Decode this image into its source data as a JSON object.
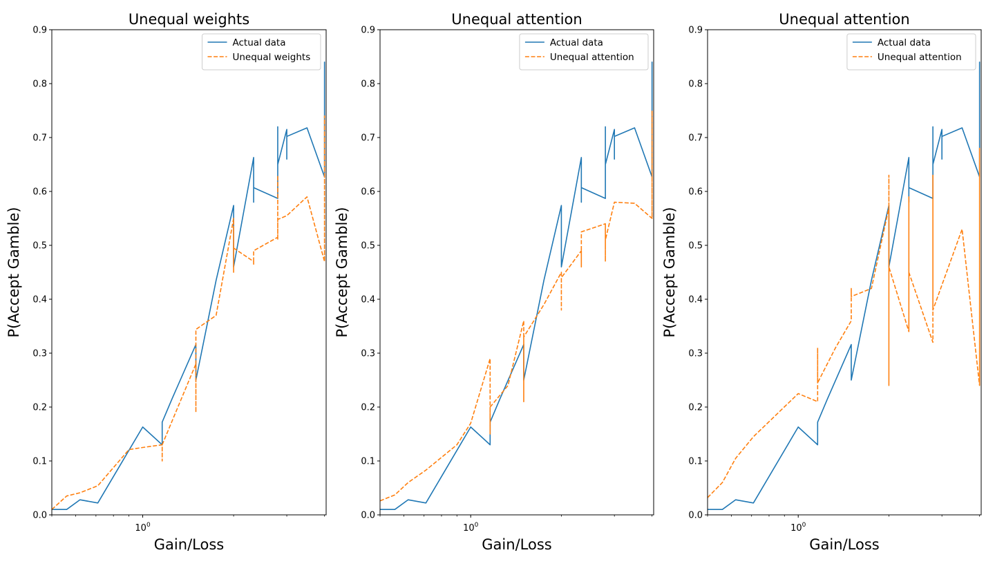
{
  "chart_data": [
    {
      "type": "line",
      "title": "Unequal weights",
      "xlabel": "Gain/Loss",
      "ylabel": "P(Accept Gamble)",
      "xscale": "log",
      "xlim": [
        0.5,
        4.05
      ],
      "ylim": [
        0,
        0.9
      ],
      "yticks": [
        "0.0",
        "0.1",
        "0.2",
        "0.3",
        "0.4",
        "0.5",
        "0.6",
        "0.7",
        "0.8",
        "0.9"
      ],
      "xtick_label": "10",
      "xtick_exp": "0",
      "grid": false,
      "legend_position": "upper right",
      "series": [
        {
          "name": "Actual data",
          "color": "#1f77b4",
          "style": "solid",
          "x": [
            0.5,
            0.56,
            0.62,
            0.71,
            1.0,
            1.16,
            1.16,
            1.25,
            1.5,
            1.5,
            1.75,
            2.0,
            2.0,
            2.33,
            2.33,
            2.33,
            2.33,
            2.33,
            2.8,
            2.8,
            2.8,
            3.0,
            3.0,
            3.0,
            3.0,
            3.0,
            3.5,
            4.0,
            4.0,
            4.0
          ],
          "y": [
            0.01,
            0.01,
            0.028,
            0.022,
            0.163,
            0.13,
            0.172,
            0.215,
            0.316,
            0.25,
            0.435,
            0.574,
            0.46,
            0.663,
            0.58,
            0.607,
            0.58,
            0.607,
            0.587,
            0.72,
            0.65,
            0.715,
            0.66,
            0.702,
            0.702,
            0.702,
            0.718,
            0.627,
            0.84,
            0.63
          ]
        },
        {
          "name": "Unequal weights",
          "color": "#ff7f0e",
          "style": "dashed",
          "x": [
            0.5,
            0.56,
            0.62,
            0.71,
            0.9,
            1.0,
            1.16,
            1.16,
            1.16,
            1.5,
            1.5,
            1.5,
            1.75,
            2.0,
            2.0,
            2.0,
            2.0,
            2.33,
            2.33,
            2.33,
            2.8,
            2.8,
            2.8,
            2.8,
            3.0,
            3.0,
            3.5,
            4.0,
            4.0,
            4.0
          ],
          "y": [
            0.01,
            0.035,
            0.041,
            0.054,
            0.121,
            0.125,
            0.13,
            0.1,
            0.13,
            0.28,
            0.19,
            0.344,
            0.37,
            0.55,
            0.45,
            0.535,
            0.495,
            0.47,
            0.465,
            0.49,
            0.515,
            0.63,
            0.51,
            0.548,
            0.555,
            0.555,
            0.59,
            0.47,
            0.74,
            0.47
          ]
        }
      ]
    },
    {
      "type": "line",
      "title": "Unequal attention",
      "xlabel": "Gain/Loss",
      "ylabel": "P(Accept Gamble)",
      "xscale": "log",
      "xlim": [
        0.5,
        4.05
      ],
      "ylim": [
        0,
        0.9
      ],
      "yticks": [
        "0.0",
        "0.1",
        "0.2",
        "0.3",
        "0.4",
        "0.5",
        "0.6",
        "0.7",
        "0.8",
        "0.9"
      ],
      "xtick_label": "10",
      "xtick_exp": "0",
      "grid": false,
      "legend_position": "upper right",
      "series": [
        {
          "name": "Actual data",
          "color": "#1f77b4",
          "style": "solid",
          "x": [
            0.5,
            0.56,
            0.62,
            0.71,
            1.0,
            1.16,
            1.16,
            1.25,
            1.5,
            1.5,
            1.75,
            2.0,
            2.0,
            2.33,
            2.33,
            2.33,
            2.33,
            2.33,
            2.8,
            2.8,
            2.8,
            3.0,
            3.0,
            3.0,
            3.0,
            3.0,
            3.5,
            4.0,
            4.0,
            4.0
          ],
          "y": [
            0.01,
            0.01,
            0.028,
            0.022,
            0.163,
            0.13,
            0.172,
            0.215,
            0.316,
            0.25,
            0.435,
            0.574,
            0.46,
            0.663,
            0.58,
            0.607,
            0.58,
            0.607,
            0.587,
            0.72,
            0.65,
            0.715,
            0.66,
            0.702,
            0.702,
            0.702,
            0.718,
            0.627,
            0.84,
            0.63
          ]
        },
        {
          "name": "Unequal attention",
          "color": "#ff7f0e",
          "style": "dashed",
          "x": [
            0.5,
            0.56,
            0.62,
            0.71,
            0.9,
            1.0,
            1.16,
            1.16,
            1.16,
            1.33,
            1.5,
            1.5,
            1.5,
            1.75,
            2.0,
            2.0,
            2.0,
            2.0,
            2.33,
            2.33,
            2.33,
            2.33,
            2.8,
            2.8,
            2.8,
            2.8,
            3.0,
            3.0,
            3.5,
            4.0,
            4.0,
            4.0
          ],
          "y": [
            0.026,
            0.037,
            0.06,
            0.083,
            0.13,
            0.17,
            0.29,
            0.15,
            0.2,
            0.24,
            0.36,
            0.21,
            0.33,
            0.39,
            0.45,
            0.38,
            0.42,
            0.44,
            0.49,
            0.46,
            0.49,
            0.525,
            0.54,
            0.47,
            0.54,
            0.51,
            0.58,
            0.58,
            0.578,
            0.55,
            0.75,
            0.55
          ]
        }
      ]
    },
    {
      "type": "line",
      "title": "Unequal attention",
      "xlabel": "Gain/Loss",
      "ylabel": "P(Accept Gamble)",
      "xscale": "log",
      "xlim": [
        0.5,
        4.05
      ],
      "ylim": [
        0,
        0.9
      ],
      "yticks": [
        "0.0",
        "0.1",
        "0.2",
        "0.3",
        "0.4",
        "0.5",
        "0.6",
        "0.7",
        "0.8",
        "0.9"
      ],
      "xtick_label": "10",
      "xtick_exp": "0",
      "grid": false,
      "legend_position": "upper right",
      "series": [
        {
          "name": "Actual data",
          "color": "#1f77b4",
          "style": "solid",
          "x": [
            0.5,
            0.56,
            0.62,
            0.71,
            1.0,
            1.16,
            1.16,
            1.25,
            1.5,
            1.5,
            1.75,
            2.0,
            2.0,
            2.33,
            2.33,
            2.33,
            2.33,
            2.33,
            2.8,
            2.8,
            2.8,
            3.0,
            3.0,
            3.0,
            3.0,
            3.0,
            3.5,
            4.0,
            4.0,
            4.0
          ],
          "y": [
            0.01,
            0.01,
            0.028,
            0.022,
            0.163,
            0.13,
            0.172,
            0.215,
            0.316,
            0.25,
            0.435,
            0.574,
            0.46,
            0.663,
            0.58,
            0.607,
            0.58,
            0.607,
            0.587,
            0.72,
            0.65,
            0.715,
            0.66,
            0.702,
            0.702,
            0.702,
            0.718,
            0.627,
            0.84,
            0.63
          ]
        },
        {
          "name": "Unequal attention",
          "color": "#ff7f0e",
          "style": "dashed",
          "x": [
            0.5,
            0.56,
            0.62,
            0.71,
            1.0,
            1.16,
            1.16,
            1.16,
            1.33,
            1.5,
            1.5,
            1.5,
            1.75,
            2.0,
            2.0,
            2.0,
            2.0,
            2.33,
            2.33,
            2.33,
            2.33,
            2.33,
            2.8,
            2.8,
            2.8,
            2.8,
            3.5,
            4.0,
            4.0,
            4.0
          ],
          "y": [
            0.032,
            0.06,
            0.105,
            0.145,
            0.225,
            0.21,
            0.31,
            0.245,
            0.31,
            0.36,
            0.42,
            0.405,
            0.42,
            0.57,
            0.24,
            0.63,
            0.46,
            0.34,
            0.59,
            0.345,
            0.59,
            0.45,
            0.32,
            0.63,
            0.38,
            0.38,
            0.53,
            0.24,
            0.68,
            0.24
          ]
        }
      ]
    }
  ]
}
